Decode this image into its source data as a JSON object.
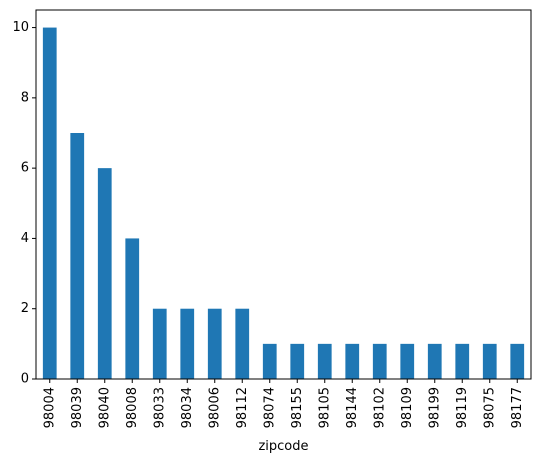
{
  "chart_data": {
    "type": "bar",
    "xlabel": "zipcode",
    "ylabel": "",
    "categories": [
      "98004",
      "98039",
      "98040",
      "98008",
      "98033",
      "98034",
      "98006",
      "98112",
      "98074",
      "98155",
      "98105",
      "98144",
      "98102",
      "98109",
      "98199",
      "98119",
      "98075",
      "98177"
    ],
    "values": [
      10,
      7,
      6,
      4,
      2,
      2,
      2,
      2,
      1,
      1,
      1,
      1,
      1,
      1,
      1,
      1,
      1,
      1
    ],
    "ylim": [
      0,
      10.5
    ],
    "yticks": [
      0,
      2,
      4,
      6,
      8,
      10
    ],
    "grid": false,
    "bar_color": "#1f77b4"
  }
}
